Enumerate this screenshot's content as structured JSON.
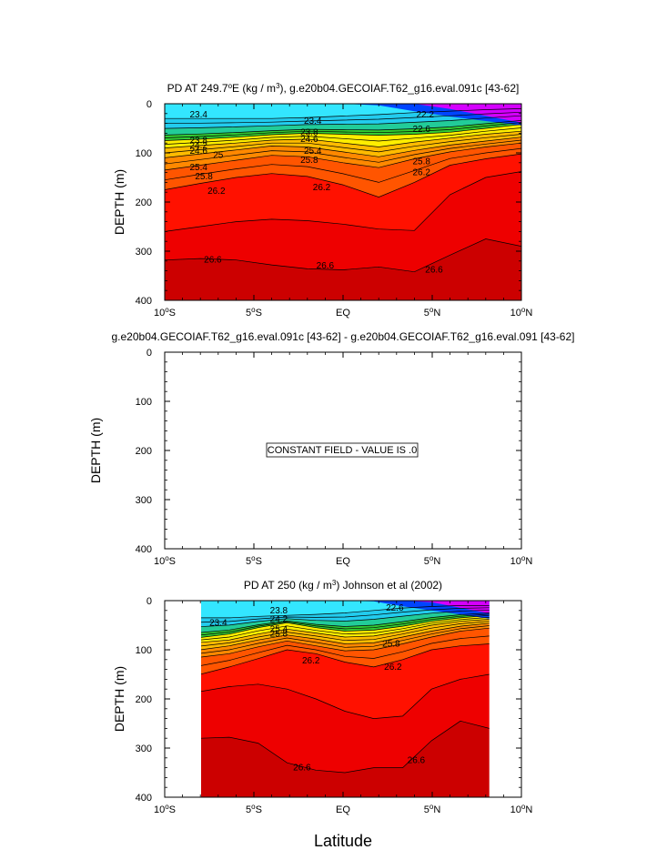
{
  "chart_data": [
    {
      "type": "contour",
      "title": "PD AT 249.7°E (kg / m³), g.e20b04.GECOIAF.T62_g16.eval.091c [43-62]",
      "title_parts": {
        "pre": "PD AT 249.7",
        "sup1": "o",
        "mid": "E (kg / m",
        "sup2": "3",
        "post": "), g.e20b04.GECOIAF.T62_g16.eval.091c [43-62]"
      },
      "ylabel": "DEPTH (m)",
      "xlim": [
        -10,
        10
      ],
      "ylim": [
        400,
        0
      ],
      "data_x_range": [
        -10,
        10
      ],
      "surface_density_range": [
        22.2,
        23.4
      ],
      "isopycnals": [
        {
          "level": 23.4,
          "depth": [
            30,
            30,
            30,
            30,
            28,
            25,
            22,
            18,
            15,
            12,
            10
          ]
        },
        {
          "level": 24.6,
          "depth": [
            75,
            72,
            68,
            63,
            60,
            62,
            64,
            62,
            58,
            50,
            42
          ]
        },
        {
          "level": 25.0,
          "depth": [
            90,
            85,
            80,
            74,
            72,
            80,
            88,
            78,
            70,
            62,
            56
          ]
        },
        {
          "level": 25.4,
          "depth": [
            110,
            102,
            94,
            86,
            88,
            98,
            108,
            95,
            84,
            76,
            68
          ]
        },
        {
          "level": 25.8,
          "depth": [
            135,
            125,
            115,
            105,
            108,
            120,
            130,
            112,
            98,
            88,
            80
          ]
        },
        {
          "level": 26.2,
          "depth": [
            175,
            162,
            150,
            142,
            148,
            165,
            190,
            160,
            125,
            112,
            102
          ]
        },
        {
          "level": 26.4,
          "depth": [
            260,
            250,
            240,
            235,
            238,
            245,
            255,
            258,
            185,
            150,
            138
          ]
        },
        {
          "level": 26.6,
          "depth": [
            318,
            315,
            318,
            328,
            336,
            338,
            332,
            342,
            308,
            275,
            290
          ]
        }
      ],
      "labels": [
        {
          "text": "23.4",
          "x": -8.1,
          "y": 22
        },
        {
          "text": "23.4",
          "x": -1.7,
          "y": 35
        },
        {
          "text": "23.8",
          "x": -8.1,
          "y": 75
        },
        {
          "text": "24.2",
          "x": -8.1,
          "y": 85
        },
        {
          "text": "24.6",
          "x": -8.1,
          "y": 96
        },
        {
          "text": "25",
          "x": -7.0,
          "y": 105
        },
        {
          "text": "25.4",
          "x": -8.1,
          "y": 130
        },
        {
          "text": "25.8",
          "x": -7.8,
          "y": 148
        },
        {
          "text": "26.2",
          "x": -7.1,
          "y": 178
        },
        {
          "text": "26.2",
          "x": -1.2,
          "y": 170
        },
        {
          "text": "26.2",
          "x": 4.4,
          "y": 140
        },
        {
          "text": "25.8",
          "x": -1.9,
          "y": 115
        },
        {
          "text": "25.4",
          "x": -1.7,
          "y": 96
        },
        {
          "text": "24.6",
          "x": -1.9,
          "y": 72
        },
        {
          "text": "23.8",
          "x": -1.9,
          "y": 58
        },
        {
          "text": "22.2",
          "x": 4.6,
          "y": 22
        },
        {
          "text": "22.6",
          "x": 4.4,
          "y": 52
        },
        {
          "text": "25.8",
          "x": 4.4,
          "y": 118
        },
        {
          "text": "26.6",
          "x": -7.3,
          "y": 318
        },
        {
          "text": "26.6",
          "x": -1.0,
          "y": 330
        },
        {
          "text": "26.6",
          "x": 5.1,
          "y": 338
        }
      ],
      "xticks": [
        "10°S",
        "5°S",
        "EQ",
        "5°N",
        "10°N"
      ],
      "yticks": [
        0,
        100,
        200,
        300,
        400
      ]
    },
    {
      "type": "contour",
      "title": "g.e20b04.GECOIAF.T62_g16.eval.091c [43-62] - g.e20b04.GECOIAF.T62_g16.eval.091 [43-62]",
      "ylabel": "DEPTH (m)",
      "xlim": [
        -10,
        10
      ],
      "ylim": [
        400,
        0
      ],
      "annotation": "CONSTANT FIELD - VALUE IS .0",
      "xticks": [
        "10°S",
        "5°S",
        "EQ",
        "5°N",
        "10°N"
      ],
      "yticks": [
        0,
        100,
        200,
        300,
        400
      ]
    },
    {
      "type": "contour",
      "title": "PD AT 250 (kg / m³) Johnson et al (2002)",
      "title_parts": {
        "pre": "PD AT 250 (kg / m",
        "sup": "3",
        "post": ") Johnson et al (2002)"
      },
      "ylabel": "DEPTH (m)",
      "xlabel": "Latitude",
      "xlim": [
        -10,
        10
      ],
      "ylim": [
        400,
        0
      ],
      "data_x_range": [
        -8,
        8.2
      ],
      "isopycnals": [
        {
          "level": 23.4,
          "depth": [
            35,
            35,
            32,
            30,
            28,
            25,
            20,
            15,
            12,
            10,
            10
          ]
        },
        {
          "level": 24.6,
          "depth": [
            75,
            68,
            55,
            45,
            55,
            62,
            60,
            52,
            42,
            35,
            30
          ]
        },
        {
          "level": 25.0,
          "depth": [
            85,
            80,
            68,
            58,
            66,
            74,
            72,
            62,
            50,
            42,
            38
          ]
        },
        {
          "level": 25.4,
          "depth": [
            100,
            92,
            80,
            70,
            78,
            88,
            86,
            74,
            62,
            52,
            46
          ]
        },
        {
          "level": 25.8,
          "depth": [
            115,
            108,
            94,
            82,
            92,
            102,
            100,
            88,
            74,
            62,
            56
          ]
        },
        {
          "level": 26.2,
          "depth": [
            150,
            135,
            118,
            100,
            108,
            125,
            135,
            120,
            100,
            92,
            88
          ]
        },
        {
          "level": 26.4,
          "depth": [
            185,
            175,
            170,
            180,
            200,
            225,
            240,
            235,
            180,
            160,
            150
          ]
        },
        {
          "level": 26.6,
          "depth": [
            280,
            278,
            290,
            330,
            345,
            350,
            340,
            340,
            285,
            245,
            260
          ]
        }
      ],
      "labels": [
        {
          "text": "23.4",
          "x": -7.0,
          "y": 45
        },
        {
          "text": "23.8",
          "x": -3.6,
          "y": 20
        },
        {
          "text": "24.2",
          "x": -3.6,
          "y": 38
        },
        {
          "text": "25.4",
          "x": -3.6,
          "y": 58
        },
        {
          "text": "25.8",
          "x": -3.6,
          "y": 68
        },
        {
          "text": "26.2",
          "x": -1.8,
          "y": 122
        },
        {
          "text": "26.2",
          "x": 2.8,
          "y": 135
        },
        {
          "text": "22.6",
          "x": 2.9,
          "y": 15
        },
        {
          "text": "25.8",
          "x": 2.7,
          "y": 88
        },
        {
          "text": "26.6",
          "x": -2.3,
          "y": 340
        },
        {
          "text": "26.6",
          "x": 4.1,
          "y": 325
        }
      ],
      "xticks": [
        "10°S",
        "5°S",
        "EQ",
        "5°N",
        "10°N"
      ],
      "yticks": [
        0,
        100,
        200,
        300,
        400
      ]
    }
  ],
  "panels": [
    {
      "title_pre": "PD AT 249.7",
      "title_sup1": "o",
      "title_mid": "E (kg / m",
      "title_sup2": "3",
      "title_post": "), g.e20b04.GECOIAF.T62_g16.eval.091c [43-62]"
    },
    {
      "title": "g.e20b04.GECOIAF.T62_g16.eval.091c [43-62] - g.e20b04.GECOIAF.T62_g16.eval.091 [43-62]",
      "annotation": "CONSTANT FIELD - VALUE IS .0"
    },
    {
      "title_pre": "PD AT 250 (kg / m",
      "title_sup": "3",
      "title_post": ") Johnson et al (2002)"
    }
  ],
  "ylabel": "DEPTH (m)",
  "xlabel": "Latitude",
  "xticks": [
    {
      "num": "10",
      "sup": "o",
      "suf": "S"
    },
    {
      "num": "5",
      "sup": "o",
      "suf": "S"
    },
    {
      "num": "EQ",
      "sup": "",
      "suf": ""
    },
    {
      "num": "5",
      "sup": "o",
      "suf": "N"
    },
    {
      "num": "10",
      "sup": "o",
      "suf": "N"
    }
  ],
  "yticks": [
    "0",
    "100",
    "200",
    "300",
    "400"
  ],
  "colors": {
    "cyan": "#33e6ff",
    "blue": "#0044ff",
    "magenta": "#d400ff",
    "green": "#33cc33",
    "yellow": "#ffee00",
    "orange": "#ff8800",
    "red": "#ff1100",
    "darkred": "#cc0000"
  }
}
